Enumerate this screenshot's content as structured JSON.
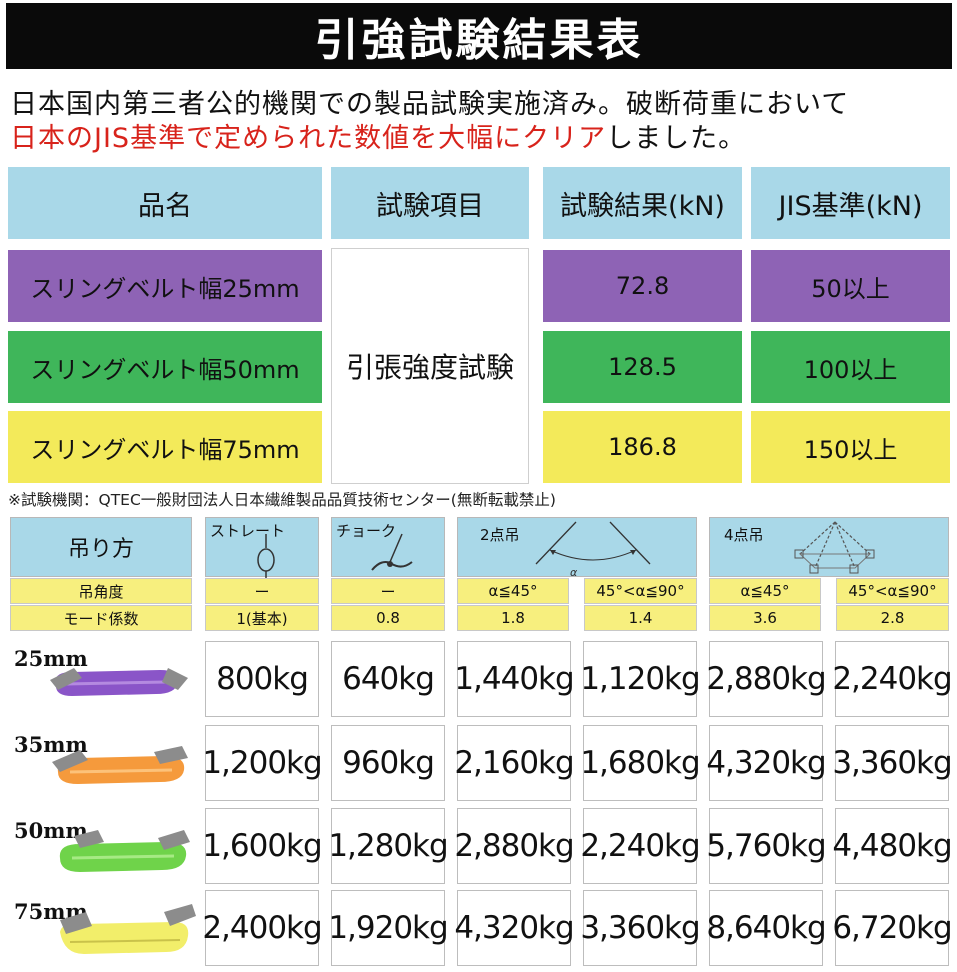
{
  "title": "引強試験結果表",
  "intro": {
    "line1": "日本国内第三者公的機関での製品試験実施済み。破断荷重において",
    "line2_highlight": "日本のJIS基準で定められた数値を大幅にクリア",
    "line2_rest": "しました。"
  },
  "test_table": {
    "headers": [
      "品名",
      "試験項目",
      "試験結果(kN)",
      "JIS基準(kN)"
    ],
    "test_item": "引張強度試験",
    "rows": [
      {
        "name": "スリングベルト幅25mm",
        "result": "72.8",
        "jis": "50以上",
        "color": "#8e63b5"
      },
      {
        "name": "スリングベルト幅50mm",
        "result": "128.5",
        "jis": "100以上",
        "color": "#3fb65a"
      },
      {
        "name": "スリングベルト幅75mm",
        "result": "186.8",
        "jis": "150以上",
        "color": "#f3ea5a"
      }
    ]
  },
  "note": "※試験機関：QTEC一般財団法人日本繊維製品品質技術センター(無断転載禁止)",
  "load_table": {
    "method_label": "吊り方",
    "angle_label": "吊角度",
    "mode_label": "モード係数",
    "methods": [
      "ストレート",
      "チョーク",
      "2点吊",
      "4点吊"
    ],
    "alpha_symbol": "α",
    "angles": [
      "ー",
      "ー",
      "α≦45°",
      "45°<α≦90°",
      "α≦45°",
      "45°<α≦90°"
    ],
    "modes": [
      "1(基本)",
      "0.8",
      "1.8",
      "1.4",
      "3.6",
      "2.8"
    ],
    "rows": [
      {
        "size": "25mm",
        "belt_color": "#8a55c8",
        "values": [
          "800kg",
          "640kg",
          "1,440kg",
          "1,120kg",
          "2,880kg",
          "2,240kg"
        ]
      },
      {
        "size": "35mm",
        "belt_color": "#f59a3c",
        "values": [
          "1,200kg",
          "960kg",
          "2,160kg",
          "1,680kg",
          "4,320kg",
          "3,360kg"
        ]
      },
      {
        "size": "50mm",
        "belt_color": "#6fd34a",
        "values": [
          "1,600kg",
          "1,280kg",
          "2,880kg",
          "2,240kg",
          "5,760kg",
          "4,480kg"
        ]
      },
      {
        "size": "75mm",
        "belt_color": "#f2ee6a",
        "values": [
          "2,400kg",
          "1,920kg",
          "4,320kg",
          "3,360kg",
          "8,640kg",
          "6,720kg"
        ]
      }
    ]
  }
}
